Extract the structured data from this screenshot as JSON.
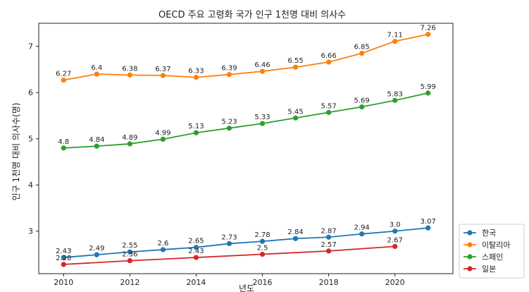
{
  "chart_data": {
    "type": "line",
    "title": "OECD 주요 고령화 국가 인구 1천명 대비 의사수",
    "xlabel": "년도",
    "ylabel": "인구 1천명 대비 의사수(명)",
    "xlim": [
      2009.25,
      2021.75
    ],
    "ylim": [
      2.08,
      7.5
    ],
    "x_ticks": [
      2010,
      2012,
      2014,
      2016,
      2018,
      2020
    ],
    "y_ticks": [
      3,
      4,
      5,
      6,
      7
    ],
    "grid": false,
    "legend_position": "lower-right-outside",
    "series": [
      {
        "name": "한국",
        "color": "#1f77b4",
        "x": [
          2010,
          2011,
          2012,
          2013,
          2014,
          2015,
          2016,
          2017,
          2018,
          2019,
          2020,
          2021
        ],
        "values": [
          2.43,
          2.49,
          2.55,
          2.6,
          2.65,
          2.73,
          2.78,
          2.84,
          2.87,
          2.94,
          3.0,
          3.07
        ],
        "labels": [
          "2.43",
          "2.49",
          "2.55",
          "2.6",
          "2.65",
          "2.73",
          "2.78",
          "2.84",
          "2.87",
          "2.94",
          "3.0",
          "3.07"
        ]
      },
      {
        "name": "이탈리아",
        "color": "#ff7f0e",
        "x": [
          2010,
          2011,
          2012,
          2013,
          2014,
          2015,
          2016,
          2017,
          2018,
          2019,
          2020,
          2021
        ],
        "values": [
          6.27,
          6.4,
          6.38,
          6.37,
          6.33,
          6.39,
          6.46,
          6.55,
          6.66,
          6.85,
          7.11,
          7.26
        ],
        "labels": [
          "6.27",
          "6.4",
          "6.38",
          "6.37",
          "6.33",
          "6.39",
          "6.46",
          "6.55",
          "6.66",
          "6.85",
          "7.11",
          "7.26"
        ]
      },
      {
        "name": "스페인",
        "color": "#2ca02c",
        "x": [
          2010,
          2011,
          2012,
          2013,
          2014,
          2015,
          2016,
          2017,
          2018,
          2019,
          2020,
          2021
        ],
        "values": [
          4.8,
          4.84,
          4.89,
          4.99,
          5.13,
          5.23,
          5.33,
          5.45,
          5.57,
          5.69,
          5.83,
          5.99
        ],
        "labels": [
          "4.8",
          "4.84",
          "4.89",
          "4.99",
          "5.13",
          "5.23",
          "5.33",
          "5.45",
          "5.57",
          "5.69",
          "5.83",
          "5.99"
        ]
      },
      {
        "name": "일본",
        "color": "#d62728",
        "x": [
          2010,
          2012,
          2014,
          2016,
          2018,
          2020
        ],
        "values": [
          2.28,
          2.36,
          2.43,
          2.5,
          2.57,
          2.67
        ],
        "labels": [
          "2.28",
          "2.36",
          "2.43",
          "2.5",
          "2.57",
          "2.67"
        ]
      }
    ]
  }
}
